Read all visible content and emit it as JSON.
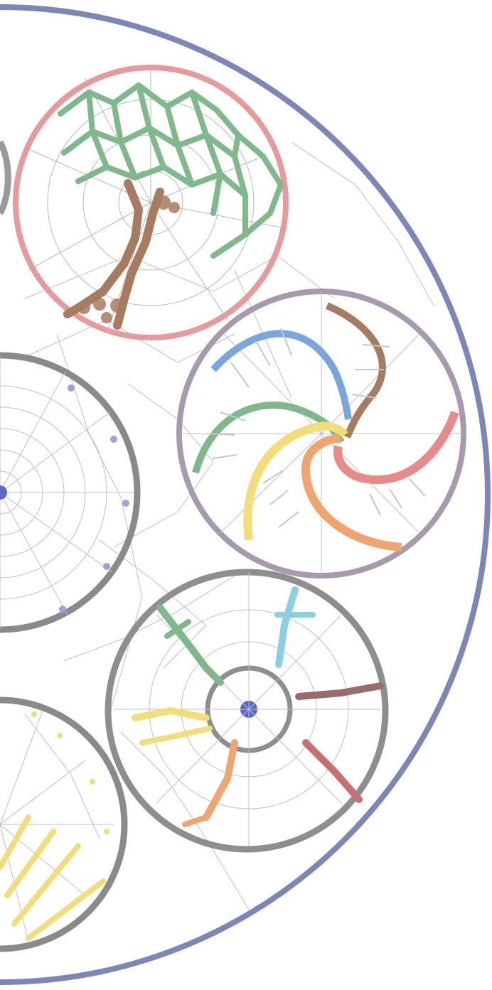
{
  "image": {
    "subject": "beaded-dreamcatcher-mandala-photo",
    "background_color": "#ffffff",
    "outer_ring_color": "#7d86b8",
    "web_color": "#8a8a8a",
    "rings": [
      {
        "name": "tree-ring",
        "ring_color": "#e79a9a",
        "motif": "tree"
      },
      {
        "name": "spiral-ring",
        "ring_color": "#a79aae",
        "motif": "rainbow-spiral"
      },
      {
        "name": "people-ring",
        "ring_color": "#8e8e8e",
        "motif": "figures-around-center"
      },
      {
        "name": "web-ring",
        "ring_color": "#8a8a8a",
        "motif": "spider-web"
      },
      {
        "name": "sun-ring",
        "ring_color": "#8a8a8a",
        "motif": "sun-rays"
      },
      {
        "name": "left-edge-ring",
        "ring_color": "#9a9a9a",
        "motif": "partial"
      }
    ],
    "palette": {
      "green": "#7fb98b",
      "brown": "#a77b5f",
      "blue": "#79a6de",
      "purple": "#9a8ba3",
      "red": "#e88a8a",
      "orange": "#f0a46e",
      "yellow": "#f3dd79",
      "cyan": "#8ccfe3",
      "dark_red": "#c86f6f",
      "center_blue": "#5a67c8"
    }
  }
}
